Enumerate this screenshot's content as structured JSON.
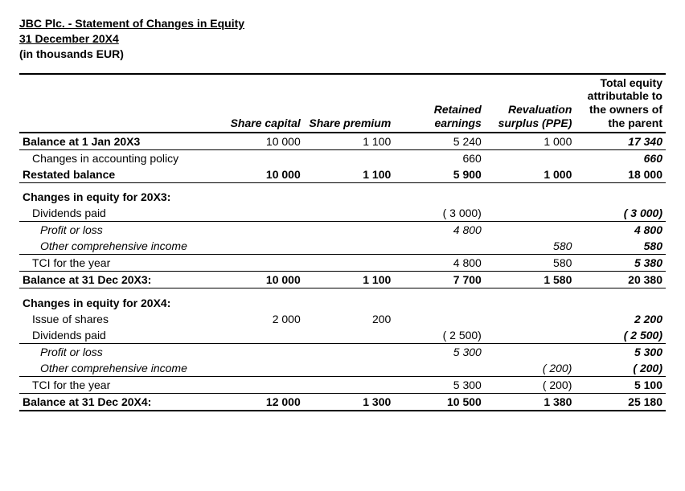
{
  "header": {
    "line1": "JBC Plc. - Statement of Changes in Equity",
    "line2": "31 December 20X4",
    "line3": "(in thousands EUR)"
  },
  "columns": {
    "c1": "Share capital",
    "c2": "Share premium",
    "c3": "Retained earnings",
    "c4": "Revaluation surplus (PPE)",
    "c5": "Total equity attributable to the owners of the parent"
  },
  "rows": {
    "balJan20X3": {
      "label": "Balance at 1 Jan 20X3",
      "c1": "10 000",
      "c2": "1 100",
      "c3": "5 240",
      "c4": "1 000",
      "c5": "17 340"
    },
    "chgAcctPolicy": {
      "label": "Changes in accounting policy",
      "c1": "",
      "c2": "",
      "c3": "660",
      "c4": "",
      "c5": "660"
    },
    "restated": {
      "label": "Restated balance",
      "c1": "10 000",
      "c2": "1 100",
      "c3": "5 900",
      "c4": "1 000",
      "c5": "18 000"
    },
    "hdr20X3": {
      "label": "Changes in equity for 20X3:"
    },
    "div20X3": {
      "label": "Dividends paid",
      "c1": "",
      "c2": "",
      "c3": "( 3 000)",
      "c4": "",
      "c5": "( 3 000)"
    },
    "pl20X3": {
      "label": "Profit or loss",
      "c1": "",
      "c2": "",
      "c3": "4 800",
      "c4": "",
      "c5": "4 800"
    },
    "oci20X3": {
      "label": "Other comprehensive income",
      "c1": "",
      "c2": "",
      "c3": "",
      "c4": "580",
      "c5": "580"
    },
    "tci20X3": {
      "label": "TCI for the year",
      "c1": "",
      "c2": "",
      "c3": "4 800",
      "c4": "580",
      "c5": "5 380"
    },
    "balDec20X3": {
      "label": "Balance at 31 Dec 20X3:",
      "c1": "10 000",
      "c2": "1 100",
      "c3": "7 700",
      "c4": "1 580",
      "c5": "20 380"
    },
    "hdr20X4": {
      "label": "Changes in equity for 20X4:"
    },
    "issue20X4": {
      "label": "Issue of shares",
      "c1": "2 000",
      "c2": "200",
      "c3": "",
      "c4": "",
      "c5": "2 200"
    },
    "div20X4": {
      "label": "Dividends paid",
      "c1": "",
      "c2": "",
      "c3": "( 2 500)",
      "c4": "",
      "c5": "( 2 500)"
    },
    "pl20X4": {
      "label": "Profit or loss",
      "c1": "",
      "c2": "",
      "c3": "5 300",
      "c4": "",
      "c5": "5 300"
    },
    "oci20X4": {
      "label": "Other comprehensive income",
      "c1": "",
      "c2": "",
      "c3": "",
      "c4": "( 200)",
      "c5": "( 200)"
    },
    "tci20X4": {
      "label": "TCI for the year",
      "c1": "",
      "c2": "",
      "c3": "5 300",
      "c4": "( 200)",
      "c5": "5 100"
    },
    "balDec20X4": {
      "label": "Balance at 31 Dec 20X4:",
      "c1": "12 000",
      "c2": "1 300",
      "c3": "10 500",
      "c4": "1 380",
      "c5": "25 180"
    }
  }
}
